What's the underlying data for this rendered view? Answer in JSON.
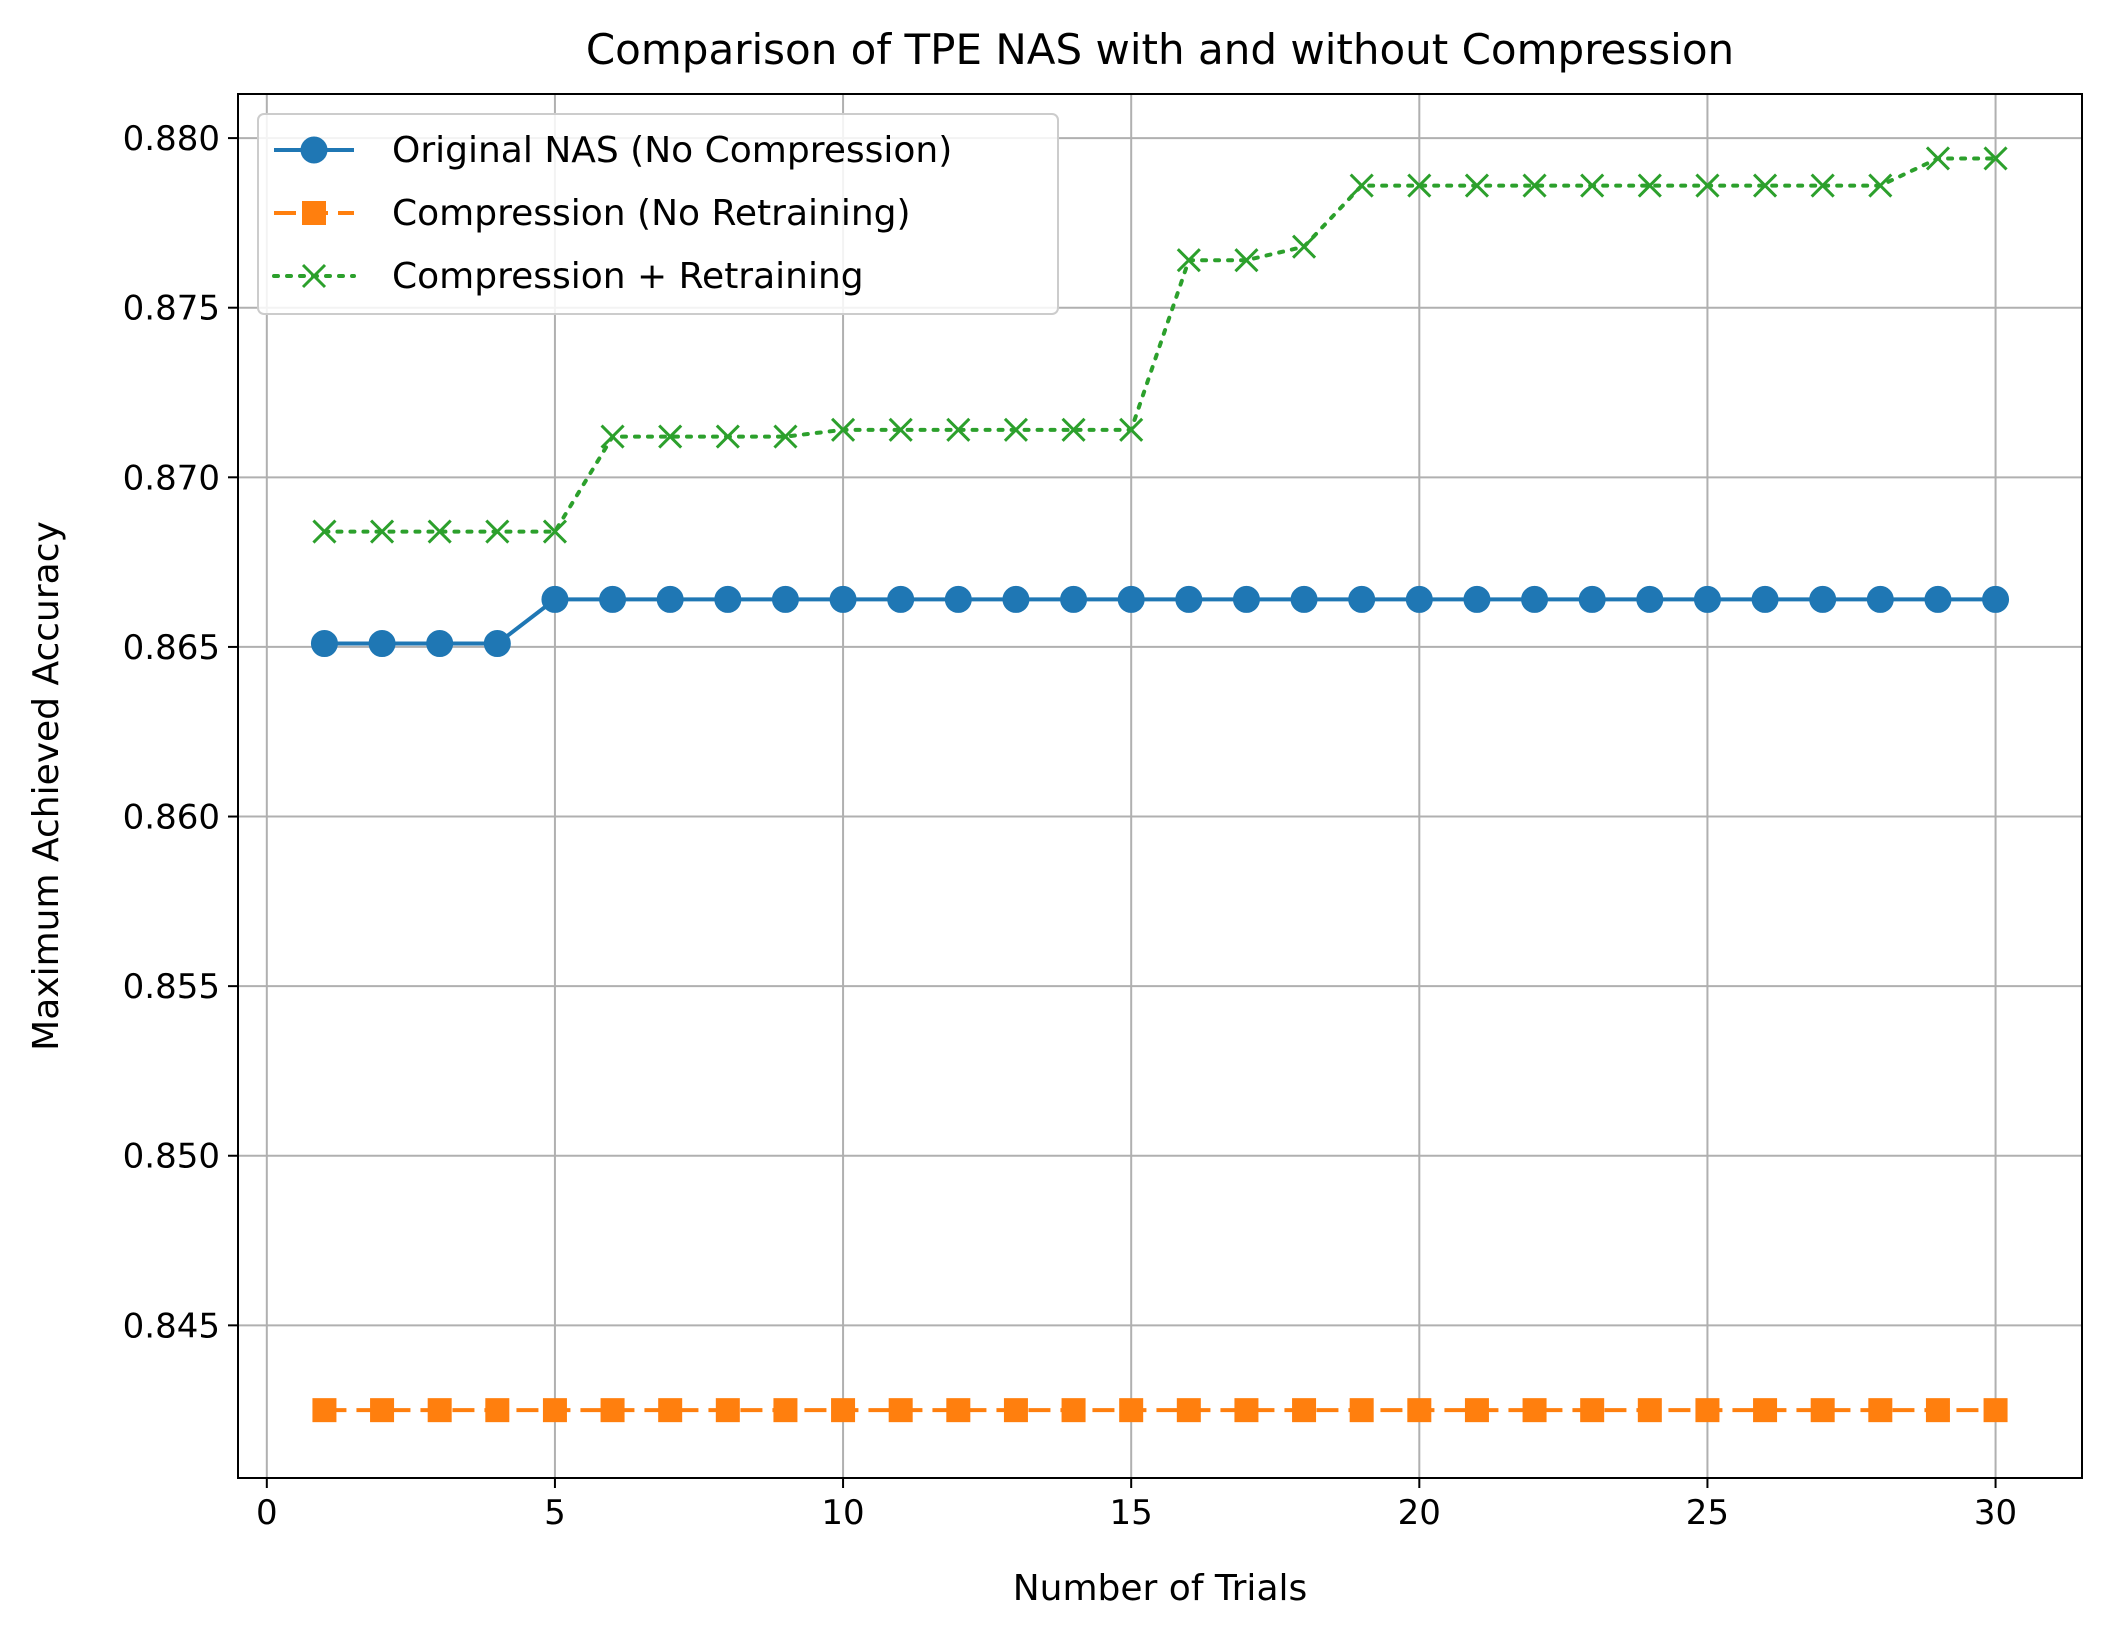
{
  "chart_data": {
    "type": "line",
    "title": "Comparison of TPE NAS with and without Compression",
    "xlabel": "Number of Trials",
    "ylabel": "Maximum Achieved Accuracy",
    "xlim": [
      -0.5,
      31.5
    ],
    "ylim": [
      0.8405,
      0.8813
    ],
    "xticks": [
      0,
      5,
      10,
      15,
      20,
      25,
      30
    ],
    "xtick_labels": [
      "0",
      "5",
      "10",
      "15",
      "20",
      "25",
      "30"
    ],
    "yticks": [
      0.845,
      0.85,
      0.855,
      0.86,
      0.865,
      0.87,
      0.875,
      0.88
    ],
    "ytick_labels": [
      "0.845",
      "0.850",
      "0.855",
      "0.860",
      "0.865",
      "0.870",
      "0.875",
      "0.880"
    ],
    "grid": true,
    "legend_position": "upper-left",
    "x": [
      1,
      2,
      3,
      4,
      5,
      6,
      7,
      8,
      9,
      10,
      11,
      12,
      13,
      14,
      15,
      16,
      17,
      18,
      19,
      20,
      21,
      22,
      23,
      24,
      25,
      26,
      27,
      28,
      29,
      30
    ],
    "series": [
      {
        "name": "Original NAS (No Compression)",
        "color": "#1f77b4",
        "line_style": "solid",
        "marker": "circle",
        "values": [
          0.8651,
          0.8651,
          0.8651,
          0.8651,
          0.8664,
          0.8664,
          0.8664,
          0.8664,
          0.8664,
          0.8664,
          0.8664,
          0.8664,
          0.8664,
          0.8664,
          0.8664,
          0.8664,
          0.8664,
          0.8664,
          0.8664,
          0.8664,
          0.8664,
          0.8664,
          0.8664,
          0.8664,
          0.8664,
          0.8664,
          0.8664,
          0.8664,
          0.8664,
          0.8664
        ]
      },
      {
        "name": "Compression (No Retraining)",
        "color": "#ff7f0e",
        "line_style": "dashed",
        "marker": "square",
        "values": [
          0.8425,
          0.8425,
          0.8425,
          0.8425,
          0.8425,
          0.8425,
          0.8425,
          0.8425,
          0.8425,
          0.8425,
          0.8425,
          0.8425,
          0.8425,
          0.8425,
          0.8425,
          0.8425,
          0.8425,
          0.8425,
          0.8425,
          0.8425,
          0.8425,
          0.8425,
          0.8425,
          0.8425,
          0.8425,
          0.8425,
          0.8425,
          0.8425,
          0.8425,
          0.8425
        ]
      },
      {
        "name": "Compression + Retraining",
        "color": "#2ca02c",
        "line_style": "dotted",
        "marker": "x",
        "values": [
          0.8684,
          0.8684,
          0.8684,
          0.8684,
          0.8684,
          0.8712,
          0.8712,
          0.8712,
          0.8712,
          0.8714,
          0.8714,
          0.8714,
          0.8714,
          0.8714,
          0.8714,
          0.8764,
          0.8764,
          0.8768,
          0.8786,
          0.8786,
          0.8786,
          0.8786,
          0.8786,
          0.8786,
          0.8786,
          0.8786,
          0.8786,
          0.8786,
          0.8794,
          0.8794
        ]
      }
    ]
  }
}
